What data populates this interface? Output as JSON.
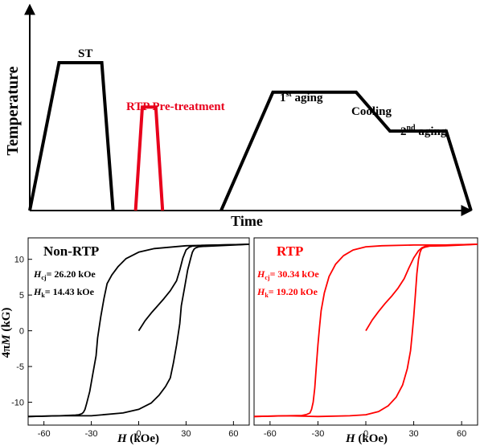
{
  "chart_data": [
    {
      "type": "line",
      "xlabel": "Time",
      "ylabel": "Temperature",
      "annotations": {
        "st": "ST",
        "rtp": "RTP Pre-treatment",
        "aging1_main": "1",
        "aging1_sup": "st",
        "aging1_rest": " aging",
        "cooling": "Cooling",
        "aging2_main": "2",
        "aging2_sup": "nd",
        "aging2_rest": " aging"
      },
      "series": [
        {
          "color": "#000000",
          "x": [
            0,
            0.13,
            0.32,
            0.37
          ],
          "y": [
            0,
            0.8,
            0.8,
            0
          ]
        },
        {
          "color": "#e8001c",
          "x": [
            0.47,
            0.5,
            0.56,
            0.59
          ],
          "y": [
            0,
            0.56,
            0.56,
            0
          ]
        },
        {
          "color": "#000000",
          "x": [
            0.85,
            1.08,
            1.45,
            1.6,
            1.73,
            1.85,
            1.96
          ],
          "y": [
            0,
            0.64,
            0.64,
            0.43,
            0.43,
            0.43,
            0
          ]
        }
      ]
    },
    {
      "type": "line",
      "title": "Non-RTP",
      "xlabel_italic": "H",
      "xlabel_rest": " (kOe)",
      "ylabel_prefix": "4π",
      "ylabel_italic": "M",
      "ylabel_rest": " (kG)",
      "xlim": [
        -70,
        70
      ],
      "ylim": [
        -13.2,
        13
      ],
      "xticks": [
        -60,
        -30,
        0,
        30,
        60
      ],
      "yticks": [
        -10,
        -5,
        0,
        5,
        10
      ],
      "hcj_sym": "H",
      "hcj_sub": "cj",
      "hcj_val": "= 26.20 kOe",
      "hk_sym": "H",
      "hk_sub": "k",
      "hk_val": "= 14.43 kOe",
      "color": "#000000",
      "series": [
        {
          "x": [
            0,
            4,
            8,
            12,
            16,
            20,
            24,
            26,
            28,
            30,
            32,
            34,
            37,
            40,
            50,
            70
          ],
          "y": [
            0,
            1.4,
            2.5,
            3.5,
            4.5,
            5.6,
            7.0,
            8.5,
            10.2,
            11.3,
            11.7,
            11.85,
            11.9,
            11.95,
            12.0,
            12.1
          ]
        },
        {
          "x": [
            70,
            50,
            30,
            10,
            0,
            -8,
            -13,
            -17,
            -20,
            -22,
            -24,
            -26,
            -27,
            -29,
            -31,
            -33,
            -34,
            -35,
            -36,
            -38,
            -40,
            -50,
            -70
          ],
          "y": [
            12.1,
            12.0,
            11.9,
            11.5,
            11.0,
            10.1,
            9.0,
            7.8,
            6.6,
            4.5,
            2.0,
            -1.0,
            -3.5,
            -6.0,
            -8.5,
            -10.2,
            -11.0,
            -11.4,
            -11.6,
            -11.75,
            -11.8,
            -11.9,
            -12.0
          ]
        },
        {
          "x": [
            -70,
            -50,
            -30,
            -10,
            0,
            8,
            13,
            17,
            20,
            22,
            24,
            26,
            27,
            29,
            31,
            33,
            34,
            35,
            36,
            38,
            40,
            50,
            70
          ],
          "y": [
            -12.0,
            -11.9,
            -11.9,
            -11.5,
            -11.0,
            -10.1,
            -9.0,
            -7.8,
            -6.6,
            -4.5,
            -2.0,
            1.0,
            3.5,
            6.0,
            8.5,
            10.2,
            11.0,
            11.4,
            11.6,
            11.75,
            11.8,
            11.9,
            12.1
          ]
        }
      ]
    },
    {
      "type": "line",
      "title": "RTP",
      "xlabel_italic": "H",
      "xlabel_rest": " (kOe)",
      "xlim": [
        -70,
        70
      ],
      "ylim": [
        -13.2,
        13
      ],
      "xticks": [
        -60,
        -30,
        0,
        30,
        60
      ],
      "hcj_sym": "H",
      "hcj_sub": "cj",
      "hcj_val": "= 30.34 kOe",
      "hk_sym": "H",
      "hk_sub": "k",
      "hk_val": "= 19.20 kOe",
      "color": "#ff0000",
      "series": [
        {
          "x": [
            0,
            4,
            8,
            12,
            16,
            20,
            24,
            27,
            30,
            33,
            35,
            37,
            40,
            50,
            70
          ],
          "y": [
            0,
            1.5,
            2.7,
            3.8,
            4.8,
            5.9,
            7.3,
            8.8,
            10.2,
            11.2,
            11.6,
            11.8,
            11.9,
            12.0,
            12.1
          ]
        },
        {
          "x": [
            70,
            50,
            30,
            10,
            0,
            -8,
            -14,
            -19,
            -23,
            -26,
            -28,
            -29,
            -30,
            -31,
            -32,
            -33,
            -34,
            -35,
            -37,
            -40,
            -50,
            -70
          ],
          "y": [
            12.1,
            12.0,
            12.0,
            11.9,
            11.75,
            11.3,
            10.5,
            9.3,
            7.6,
            5.3,
            2.8,
            0.5,
            -2.0,
            -5.0,
            -8.0,
            -10.0,
            -11.0,
            -11.5,
            -11.7,
            -11.85,
            -11.9,
            -12.0
          ]
        },
        {
          "x": [
            -70,
            -50,
            -30,
            -10,
            0,
            8,
            14,
            19,
            23,
            26,
            28,
            29,
            30,
            31,
            32,
            33,
            34,
            35,
            37,
            40,
            50,
            70
          ],
          "y": [
            -12.0,
            -11.9,
            -12.0,
            -11.9,
            -11.75,
            -11.3,
            -10.5,
            -9.3,
            -7.6,
            -5.3,
            -2.8,
            -0.5,
            2.0,
            5.0,
            8.0,
            10.0,
            11.0,
            11.5,
            11.7,
            11.85,
            11.9,
            12.1
          ]
        }
      ]
    }
  ]
}
